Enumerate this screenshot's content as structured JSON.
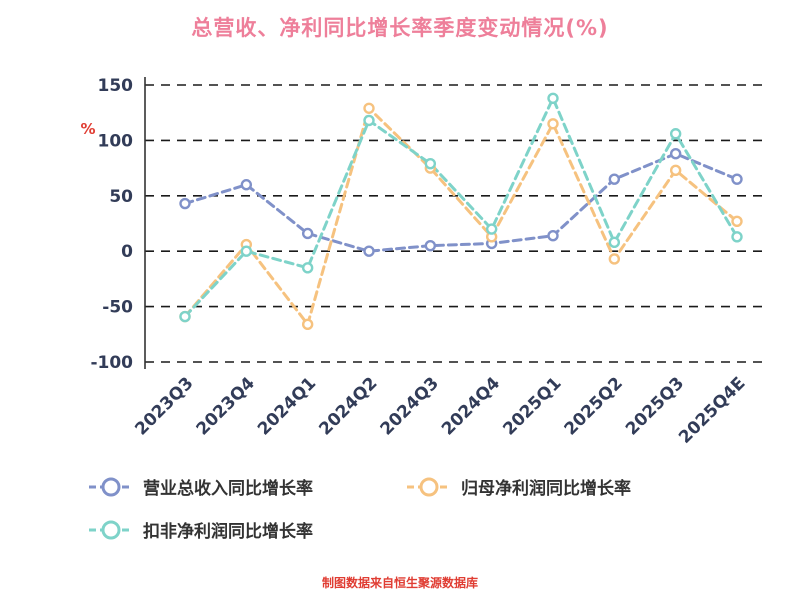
{
  "title": "总营收、净利同比增长率季度变动情况(%)",
  "footer": "制图数据来自恒生聚源数据库",
  "colors": {
    "title": "#ee7f9a",
    "axis_text": "#323c58",
    "unit_label": "#e03d33",
    "footer": "#e03d33",
    "grid": "#1a1a1a",
    "axis_line": "#333333",
    "marker_fill": "#ffffff"
  },
  "chart_data": {
    "type": "line",
    "title": "总营收、净利同比增长率季度变动情况(%)",
    "xlabel": "",
    "ylabel": "%",
    "ylim": [
      -100,
      150
    ],
    "yticks": [
      150,
      100,
      50,
      0,
      -50,
      -100
    ],
    "grid": "horizontal-dashed",
    "line_style": "dashed-with-circle-markers",
    "legend_position": "bottom-left",
    "categories": [
      "2023Q3",
      "2023Q4",
      "2024Q1",
      "2024Q2",
      "2024Q3",
      "2024Q4",
      "2025Q1",
      "2025Q2",
      "2025Q3",
      "2025Q4E"
    ],
    "series": [
      {
        "name": "营业总收入同比增长率",
        "color": "#8091c9",
        "values": [
          43,
          60,
          16,
          0,
          5,
          7,
          14,
          65,
          88,
          65
        ]
      },
      {
        "name": "归母净利润同比增长率",
        "color": "#f6c27f",
        "values": [
          -59,
          6,
          -66,
          129,
          75,
          13,
          115,
          -7,
          73,
          27
        ]
      },
      {
        "name": "扣非净利润同比增长率",
        "color": "#7ed3c9",
        "values": [
          -59,
          0,
          -15,
          118,
          79,
          20,
          138,
          8,
          106,
          13
        ]
      }
    ]
  }
}
